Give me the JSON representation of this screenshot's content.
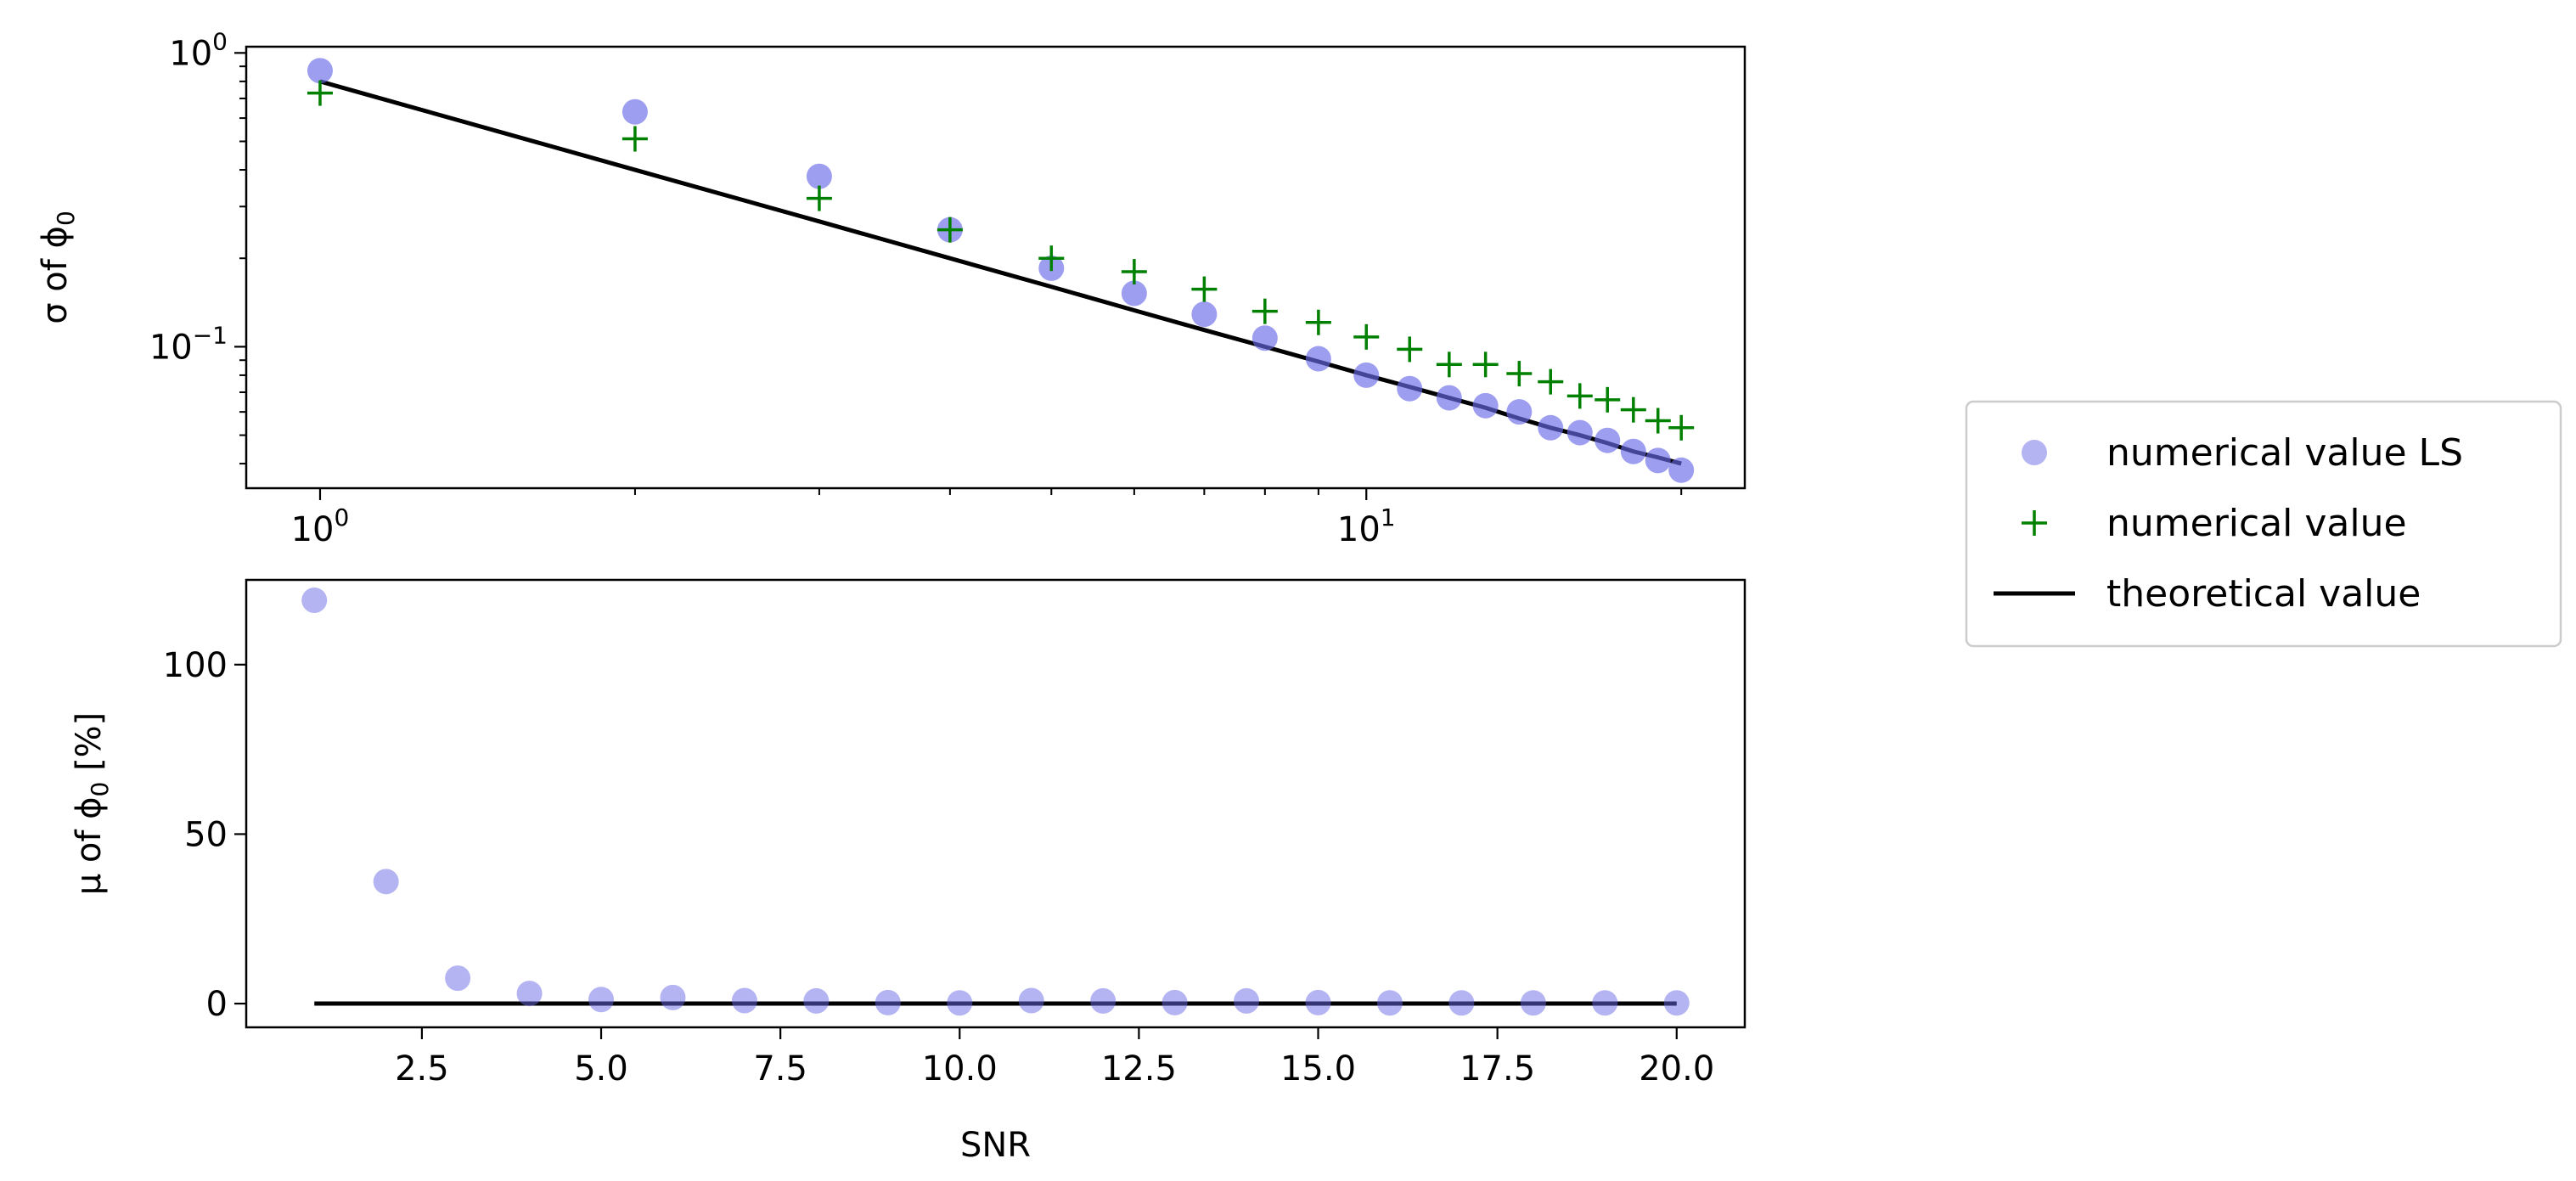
{
  "chart_data": [
    {
      "type": "scatter",
      "name": "sigma-plot",
      "xscale": "log",
      "yscale": "log",
      "xlim": [
        0.85,
        23
      ],
      "ylim": [
        0.033,
        1.05
      ],
      "xlabel": "",
      "ylabel": "σ of ϕ0",
      "ylabel_parts": {
        "prefix": "σ of ϕ",
        "subscript": "0",
        "suffix": ""
      },
      "xticks": [
        {
          "value": 1,
          "base": "10",
          "exp": "0"
        },
        {
          "value": 10,
          "base": "10",
          "exp": "1"
        }
      ],
      "yticks": [
        {
          "value": 1,
          "base": "10",
          "exp": "0"
        },
        {
          "value": 0.1,
          "base": "10",
          "exp": "−1"
        }
      ],
      "x": [
        1,
        2,
        3,
        4,
        5,
        6,
        7,
        8,
        9,
        10,
        11,
        12,
        13,
        14,
        15,
        16,
        17,
        18,
        19,
        20
      ],
      "series": [
        {
          "name": "numerical value LS",
          "values": [
            0.87,
            0.63,
            0.38,
            0.25,
            0.185,
            0.152,
            0.129,
            0.107,
            0.091,
            0.08,
            0.072,
            0.067,
            0.063,
            0.06,
            0.053,
            0.051,
            0.048,
            0.044,
            0.041,
            0.038
          ]
        },
        {
          "name": "numerical value",
          "values": [
            0.73,
            0.51,
            0.32,
            0.25,
            0.2,
            0.18,
            0.157,
            0.132,
            0.121,
            0.108,
            0.098,
            0.087,
            0.087,
            0.081,
            0.076,
            0.068,
            0.066,
            0.061,
            0.056,
            0.053
          ]
        },
        {
          "name": "theoretical value",
          "values": [
            0.8,
            0.4,
            0.267,
            0.2,
            0.16,
            0.133,
            0.114,
            0.1,
            0.089,
            0.08,
            0.073,
            0.067,
            0.062,
            0.057,
            0.053,
            0.05,
            0.047,
            0.044,
            0.042,
            0.04
          ]
        }
      ]
    },
    {
      "type": "scatter",
      "name": "mu-plot",
      "xscale": "linear",
      "yscale": "linear",
      "xlim": [
        0.05,
        20.95
      ],
      "ylim": [
        -7,
        125
      ],
      "xlabel": "SNR",
      "ylabel": "μ of ϕ0 [%]",
      "ylabel_parts": {
        "prefix": "μ of ϕ",
        "subscript": "0",
        "suffix": " [%]"
      },
      "xticks": [
        {
          "value": 2.5,
          "label": "2.5"
        },
        {
          "value": 5,
          "label": "5.0"
        },
        {
          "value": 7.5,
          "label": "7.5"
        },
        {
          "value": 10,
          "label": "10.0"
        },
        {
          "value": 12.5,
          "label": "12.5"
        },
        {
          "value": 15,
          "label": "15.0"
        },
        {
          "value": 17.5,
          "label": "17.5"
        },
        {
          "value": 20,
          "label": "20.0"
        }
      ],
      "yticks": [
        {
          "value": 0,
          "label": "0"
        },
        {
          "value": 50,
          "label": "50"
        },
        {
          "value": 100,
          "label": "100"
        }
      ],
      "x": [
        1,
        2,
        3,
        4,
        5,
        6,
        7,
        8,
        9,
        10,
        11,
        12,
        13,
        14,
        15,
        16,
        17,
        18,
        19,
        20
      ],
      "series": [
        {
          "name": "numerical value LS",
          "values": [
            119,
            36,
            7.5,
            3,
            1.2,
            1.8,
            0.9,
            0.8,
            0.3,
            0.2,
            0.9,
            0.8,
            0.3,
            0.8,
            0.3,
            0.2,
            0.2,
            0.2,
            0.2,
            0.2
          ]
        },
        {
          "name": "theoretical value",
          "x": [
            1,
            20
          ],
          "values": [
            0,
            0
          ]
        }
      ]
    }
  ],
  "legend": {
    "placement": "right",
    "items": [
      {
        "label": "numerical value LS",
        "marker": "circle"
      },
      {
        "label": "numerical value",
        "marker": "plus"
      },
      {
        "label": "theoretical value",
        "marker": "line"
      }
    ]
  },
  "colors": {
    "ls_marker": "#6a6ae8",
    "ls_marker_light": "#a9a9f5",
    "plus_marker": "#008000",
    "theory_line": "#000000"
  }
}
